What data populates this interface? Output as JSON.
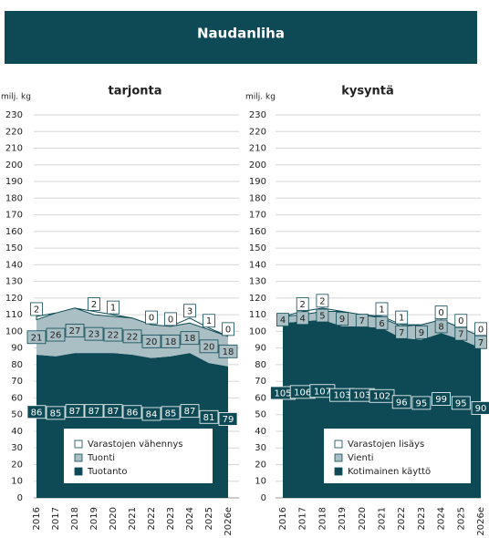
{
  "page_title": "Naudanliha",
  "chart_data": [
    {
      "type": "stacked-area",
      "title": "tarjonta",
      "y_label": "milj. kg",
      "categories": [
        "2016",
        "2017",
        "2018",
        "2019",
        "2020",
        "2021",
        "2022",
        "2023",
        "2024",
        "2025",
        "2026e"
      ],
      "series": [
        {
          "name": "Tuotanto",
          "color": "#0d4a55",
          "values": [
            86,
            85,
            87,
            87,
            87,
            86,
            84,
            85,
            87,
            81,
            79
          ]
        },
        {
          "name": "Tuonti",
          "color": "#a9bfc3",
          "values": [
            21,
            26,
            27,
            23,
            22,
            22,
            20,
            18,
            18,
            20,
            18
          ]
        },
        {
          "name": "Varastojen vähennys",
          "color": "#ffffff",
          "values": [
            2,
            0,
            0,
            2,
            1,
            0,
            0,
            0,
            3,
            1,
            0
          ],
          "value_labels": [
            "2",
            null,
            null,
            "2",
            "1",
            null,
            "0",
            "0",
            "3",
            "1",
            "0"
          ]
        }
      ],
      "ylim": [
        0,
        230
      ],
      "yticks": [
        0,
        10,
        20,
        30,
        40,
        50,
        60,
        70,
        80,
        90,
        100,
        110,
        120,
        130,
        140,
        150,
        160,
        170,
        180,
        190,
        200,
        210,
        220,
        230
      ],
      "grid": true,
      "legend": "bottom"
    },
    {
      "type": "stacked-area",
      "title": "kysyntä",
      "y_label": "milj. kg",
      "categories": [
        "2016",
        "2017",
        "2018",
        "2019",
        "2020",
        "2021",
        "2022",
        "2023",
        "2024",
        "2025",
        "2026e"
      ],
      "series": [
        {
          "name": "Kotimainen käyttö",
          "color": "#0d4a55",
          "values": [
            105,
            106,
            107,
            103,
            103,
            102,
            96,
            95,
            99,
            95,
            90
          ]
        },
        {
          "name": "Vienti",
          "color": "#a9bfc3",
          "values": [
            4,
            4,
            5,
            9,
            7,
            6,
            7,
            9,
            8,
            7,
            7
          ]
        },
        {
          "name": "Varastojen lisäys",
          "color": "#ffffff",
          "values": [
            0,
            2,
            2,
            0,
            0,
            1,
            1,
            0,
            0,
            0,
            0
          ],
          "value_labels": [
            null,
            "2",
            "2",
            null,
            null,
            "1",
            "1",
            null,
            "0",
            "0",
            "0"
          ]
        }
      ],
      "ylim": [
        0,
        230
      ],
      "yticks": [
        0,
        10,
        20,
        30,
        40,
        50,
        60,
        70,
        80,
        90,
        100,
        110,
        120,
        130,
        140,
        150,
        160,
        170,
        180,
        190,
        200,
        210,
        220,
        230
      ],
      "grid": true,
      "legend": "bottom"
    }
  ]
}
